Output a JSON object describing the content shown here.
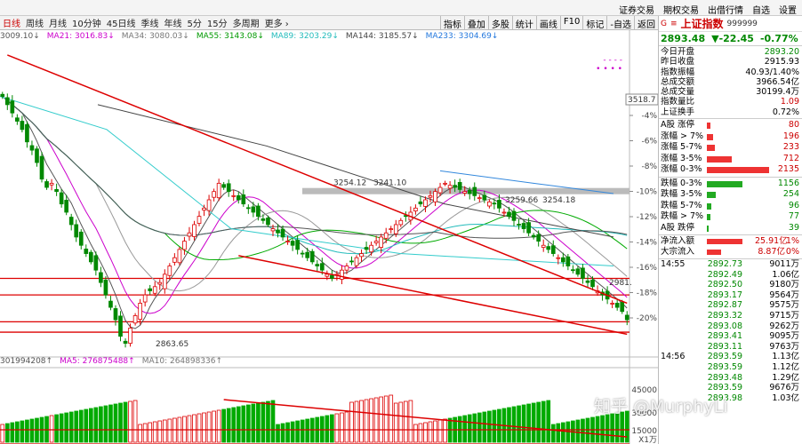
{
  "top_links": [
    "证券交易",
    "期权交易",
    "出借行情",
    "自选",
    "设置"
  ],
  "toolbar": {
    "periods": [
      "日线",
      "周线",
      "月线",
      "10分钟",
      "45日线",
      "季线",
      "年线",
      "5分",
      "15分",
      "多周期",
      "更多 ›"
    ],
    "right_buttons": [
      "指标",
      "叠加",
      "多股",
      "统计",
      "画线",
      "F10",
      "标记",
      "-自选",
      "返回"
    ]
  },
  "ma_legend": [
    {
      "label": "3009.10↓",
      "color": "#555555"
    },
    {
      "label": "MA21: 3016.83↓",
      "color": "#cc00cc"
    },
    {
      "label": "MA34: 3080.03↓",
      "color": "#777777"
    },
    {
      "label": "MA55: 3143.08↓",
      "color": "#009900"
    },
    {
      "label": "MA89: 3203.29↓",
      "color": "#22bbbb"
    },
    {
      "label": "MA144: 3185.57↓",
      "color": "#444444"
    },
    {
      "label": "MA233: 3304.69↓",
      "color": "#2277dd"
    }
  ],
  "vol_legend": [
    {
      "label": "301994208↑",
      "color": "#555555"
    },
    {
      "label": "MA5: 276875488↑",
      "color": "#cc00cc"
    },
    {
      "label": "MA10: 264898336↑",
      "color": "#777777"
    }
  ],
  "chart_data": {
    "type": "candlestick",
    "y_ticks_pct": [
      "-4%",
      "-6%",
      "-8%",
      "-10%",
      "-12%",
      "-14%",
      "-16%",
      "-18%",
      "-20%"
    ],
    "vol_ticks": [
      "45000",
      "30000",
      "15000",
      "X1万"
    ],
    "price_annotations": [
      "3254.12",
      "3241.10",
      "3259.66",
      "3254.18",
      "2863.65",
      "2981."
    ],
    "price_axis_highlight": "3518.7",
    "horizontal_levels": [
      3020,
      2980,
      2915,
      2890
    ],
    "gray_level": 3230,
    "trendlines": [
      {
        "from": [
          3560,
          1
        ],
        "to": [
          2960,
          127
        ]
      },
      {
        "from": [
          3075,
          48
        ],
        "to": [
          2885,
          127
        ]
      }
    ],
    "closes": [
      3460,
      3440,
      3420,
      3400,
      3380,
      3350,
      3330,
      3300,
      3260,
      3240,
      3250,
      3230,
      3200,
      3180,
      3150,
      3120,
      3100,
      3080,
      3060,
      3040,
      3010,
      2980,
      2950,
      2920,
      2880,
      2863,
      2900,
      2930,
      2960,
      2980,
      2990,
      3000,
      3010,
      3030,
      3050,
      3070,
      3090,
      3110,
      3130,
      3150,
      3170,
      3190,
      3210,
      3230,
      3250,
      3240,
      3230,
      3220,
      3210,
      3200,
      3190,
      3180,
      3170,
      3160,
      3150,
      3140,
      3130,
      3120,
      3110,
      3100,
      3090,
      3080,
      3070,
      3060,
      3050,
      3040,
      3030,
      3020,
      3030,
      3040,
      3050,
      3060,
      3070,
      3080,
      3090,
      3100,
      3110,
      3120,
      3130,
      3140,
      3150,
      3160,
      3170,
      3180,
      3190,
      3200,
      3210,
      3220,
      3230,
      3240,
      3250,
      3245,
      3240,
      3235,
      3230,
      3225,
      3220,
      3215,
      3210,
      3205,
      3200,
      3190,
      3180,
      3170,
      3160,
      3150,
      3140,
      3130,
      3120,
      3110,
      3100,
      3090,
      3080,
      3070,
      3060,
      3050,
      3040,
      3030,
      3020,
      3010,
      3000,
      2990,
      2980,
      2970,
      2960,
      2950,
      2940,
      2920
    ]
  },
  "panel": {
    "g_mark": "G",
    "mark": "≡",
    "name": "上证指数",
    "code": "999999",
    "price": "2893.48",
    "change": "▼-22.45",
    "change_pct": "-0.77%",
    "stats": [
      {
        "k": "今日开盘",
        "v": "2893.20",
        "c": "green"
      },
      {
        "k": "昨日收盘",
        "v": "2915.93",
        "c": ""
      },
      {
        "k": "指数振幅",
        "v": "40.93/1.40%",
        "c": ""
      },
      {
        "k": "总成交额",
        "v": "3966.54亿",
        "c": ""
      },
      {
        "k": "总成交量",
        "v": "30199.4万",
        "c": ""
      },
      {
        "k": "指数量比",
        "v": "1.09",
        "c": "red"
      },
      {
        "k": "上证换手",
        "v": "0.72%",
        "c": ""
      }
    ],
    "counts_up": [
      {
        "k": "A股 涨停",
        "v": "80",
        "w": 4
      },
      {
        "k": "涨幅 > 7%",
        "v": "196",
        "w": 7
      },
      {
        "k": "涨幅 5-7%",
        "v": "233",
        "w": 9
      },
      {
        "k": "涨幅 3-5%",
        "v": "712",
        "w": 28
      },
      {
        "k": "涨幅 0-3%",
        "v": "2135",
        "w": 70
      }
    ],
    "counts_down": [
      {
        "k": "跌幅 0-3%",
        "v": "1156",
        "w": 40
      },
      {
        "k": "跌幅 3-5%",
        "v": "254",
        "w": 10
      },
      {
        "k": "跌幅 5-7%",
        "v": "96",
        "w": 5
      },
      {
        "k": "跌幅 > 7%",
        "v": "77",
        "w": 4
      },
      {
        "k": "A股 跌停",
        "v": "39",
        "w": 2
      }
    ],
    "flows": [
      {
        "k": "净流入额",
        "v1": "25.91亿",
        "v2": "1%",
        "w": 40
      },
      {
        "k": "大宗流入",
        "v1": "8.87亿",
        "v2": "0%",
        "w": 16
      }
    ],
    "ticks": [
      {
        "t": "14:55",
        "p": "2892.73",
        "v": "9011万"
      },
      {
        "t": "",
        "p": "2892.49",
        "v": "1.06亿"
      },
      {
        "t": "",
        "p": "2892.50",
        "v": "9180万"
      },
      {
        "t": "",
        "p": "2893.17",
        "v": "9564万"
      },
      {
        "t": "",
        "p": "2892.87",
        "v": "9575万"
      },
      {
        "t": "",
        "p": "2893.32",
        "v": "9715万"
      },
      {
        "t": "",
        "p": "2893.08",
        "v": "9262万"
      },
      {
        "t": "",
        "p": "2893.41",
        "v": "9095万"
      },
      {
        "t": "",
        "p": "2893.11",
        "v": "9763万"
      },
      {
        "t": "14:56",
        "p": "2893.59",
        "v": "1.13亿"
      },
      {
        "t": "",
        "p": "2893.59",
        "v": "1.12亿"
      },
      {
        "t": "",
        "p": "2893.48",
        "v": "1.29亿"
      },
      {
        "t": "",
        "p": "2893.59",
        "v": "9676万"
      },
      {
        "t": "",
        "p": "2893.98",
        "v": "1.03亿"
      }
    ]
  },
  "watermark": "知乎 @MurphyLi"
}
